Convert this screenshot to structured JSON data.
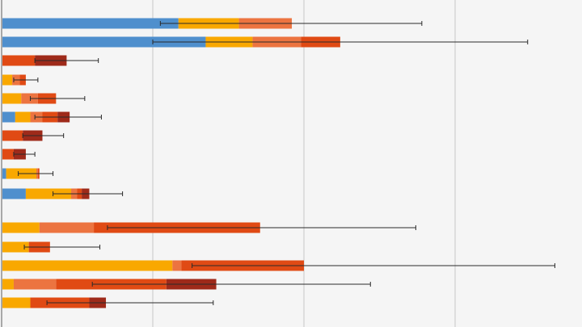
{
  "chart_data": {
    "type": "bar",
    "orientation": "horizontal",
    "stacked": true,
    "title": "",
    "xlabel": "",
    "ylabel": "",
    "xlim": [
      0,
      385
    ],
    "grid": true,
    "gridline_interval": 100,
    "tick_labels_shown": false,
    "colors": {
      "blue": "#4f8fcd",
      "yellow": "#f9a800",
      "orange": "#ec7440",
      "red": "#e04a14",
      "darkred": "#9e2a1a"
    },
    "bars": [
      {
        "segments": [
          [
            "blue",
            117
          ],
          [
            "yellow",
            40
          ],
          [
            "orange",
            35
          ]
        ],
        "error": [
          105,
          278
        ]
      },
      {
        "segments": [
          [
            "blue",
            135
          ],
          [
            "yellow",
            31
          ],
          [
            "orange",
            32
          ],
          [
            "red",
            26
          ]
        ],
        "error": [
          100,
          348
        ]
      },
      {
        "segments": [
          [
            "red",
            22
          ],
          [
            "darkred",
            21
          ]
        ],
        "error": [
          22,
          64
        ]
      },
      {
        "segments": [
          [
            "yellow",
            7
          ],
          [
            "orange",
            5
          ],
          [
            "red",
            4
          ]
        ],
        "error": [
          8,
          24
        ]
      },
      {
        "segments": [
          [
            "yellow",
            13
          ],
          [
            "orange",
            11
          ],
          [
            "red",
            12
          ]
        ],
        "error": [
          19,
          55
        ]
      },
      {
        "segments": [
          [
            "blue",
            9
          ],
          [
            "yellow",
            10
          ],
          [
            "orange",
            8
          ],
          [
            "red",
            10
          ],
          [
            "darkred",
            8
          ]
        ],
        "error": [
          22,
          66
        ]
      },
      {
        "segments": [
          [
            "red",
            14
          ],
          [
            "darkred",
            13
          ]
        ],
        "error": [
          14,
          41
        ]
      },
      {
        "segments": [
          [
            "red",
            8
          ],
          [
            "darkred",
            8
          ]
        ],
        "error": [
          8,
          22
        ]
      },
      {
        "segments": [
          [
            "blue",
            3
          ],
          [
            "yellow",
            20
          ],
          [
            "orange",
            1
          ],
          [
            "red",
            1
          ]
        ],
        "error": [
          11,
          34
        ]
      },
      {
        "segments": [
          [
            "blue",
            16
          ],
          [
            "yellow",
            30
          ],
          [
            "orange",
            4
          ],
          [
            "red",
            3
          ],
          [
            "darkred",
            5
          ]
        ],
        "error": [
          34,
          80
        ]
      },
      {
        "segments": [
          [
            "yellow",
            25
          ],
          [
            "orange",
            36
          ],
          [
            "red",
            110
          ]
        ],
        "error": [
          70,
          274
        ]
      },
      {
        "segments": [
          [
            "yellow",
            18
          ],
          [
            "red",
            14
          ]
        ],
        "error": [
          15,
          65
        ]
      },
      {
        "segments": [
          [
            "yellow",
            113
          ],
          [
            "orange",
            6
          ],
          [
            "red",
            81
          ]
        ],
        "error": [
          126,
          366
        ]
      },
      {
        "segments": [
          [
            "yellow",
            8
          ],
          [
            "orange",
            28
          ],
          [
            "red",
            73
          ],
          [
            "darkred",
            33
          ]
        ],
        "error": [
          60,
          244
        ]
      },
      {
        "segments": [
          [
            "yellow",
            19
          ],
          [
            "red",
            39
          ],
          [
            "darkred",
            11
          ]
        ],
        "error": [
          30,
          140
        ]
      }
    ]
  }
}
